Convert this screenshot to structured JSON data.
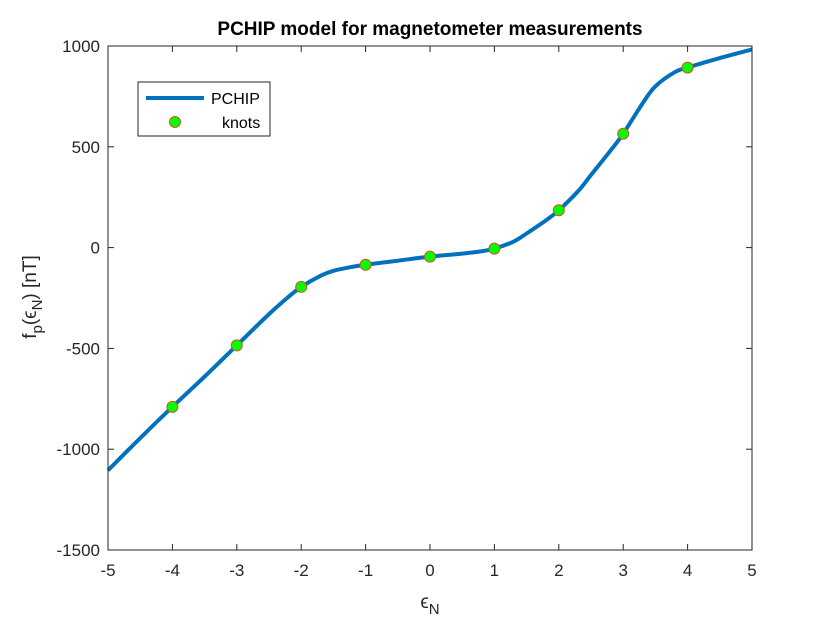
{
  "chart_data": {
    "type": "line",
    "title": "PCHIP model for magnetometer measurements",
    "xlabel": {
      "symbol": "ϵ",
      "subscript": "N"
    },
    "ylabel": {
      "prefix": "f",
      "prefix_sub": "p",
      "open": "(",
      "symbol": "ϵ",
      "symbol_sub": "N",
      "close": ")",
      "unit": " [nT]"
    },
    "xlim": [
      -5,
      5
    ],
    "ylim": [
      -1500,
      1000
    ],
    "xticks": [
      -5,
      -4,
      -3,
      -2,
      -1,
      0,
      1,
      2,
      3,
      4,
      5
    ],
    "yticks": [
      -1500,
      -1000,
      -500,
      0,
      500,
      1000
    ],
    "grid": false,
    "legend_position": "top-left",
    "series": [
      {
        "name": "PCHIP",
        "kind": "line",
        "color": "#0072BD",
        "x": [
          -5,
          -4.5,
          -4,
          -3.5,
          -3,
          -2.5,
          -2.2,
          -2,
          -1.7,
          -1.5,
          -1.2,
          -1,
          -0.5,
          0,
          0.5,
          0.8,
          1,
          1.3,
          1.5,
          1.8,
          2,
          2.3,
          2.5,
          2.8,
          3,
          3.3,
          3.5,
          3.8,
          4,
          4.5,
          5
        ],
        "y": [
          -1105,
          -945,
          -790,
          -640,
          -485,
          -330,
          -245,
          -195,
          -140,
          -115,
          -95,
          -85,
          -65,
          -45,
          -30,
          -18,
          -5,
          30,
          70,
          135,
          185,
          280,
          360,
          480,
          565,
          715,
          800,
          870,
          893,
          940,
          983
        ]
      },
      {
        "name": "knots",
        "kind": "markers",
        "color": "#00FF00",
        "edge_color": "#D95319",
        "x": [
          -4,
          -3,
          -2,
          -1,
          0,
          1,
          2,
          3,
          4
        ],
        "y": [
          -790,
          -485,
          -195,
          -85,
          -45,
          -5,
          185,
          565,
          893
        ]
      }
    ]
  }
}
